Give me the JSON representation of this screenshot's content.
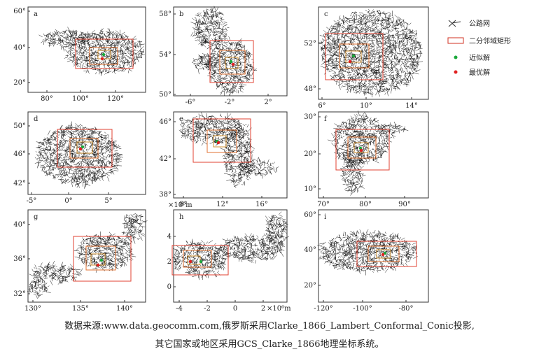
{
  "panels": [
    {
      "label": "a",
      "yticks": [
        "60°",
        "40°",
        "20°"
      ],
      "xticks": [
        "80°",
        "100°",
        "120°"
      ]
    },
    {
      "label": "b",
      "yticks": [
        "58°",
        "54°",
        "50°"
      ],
      "xticks": [
        "-6°",
        "-2°",
        "2°"
      ]
    },
    {
      "label": "c",
      "yticks": [
        "52°",
        "48°"
      ],
      "xticks": [
        "6°",
        "10°",
        "14°"
      ]
    },
    {
      "label": "d",
      "yticks": [
        "50°",
        "46°",
        "42°"
      ],
      "xticks": [
        "-5°",
        "0°",
        "5°"
      ]
    },
    {
      "label": "e",
      "yticks": [
        "46°",
        "42°",
        "38°"
      ],
      "xticks": [
        "8°",
        "12°",
        "16°"
      ]
    },
    {
      "label": "f",
      "yticks": [
        "30°",
        "20°",
        "10°"
      ],
      "xticks": [
        "70°",
        "80°",
        "90°"
      ]
    },
    {
      "label": "g",
      "yticks": [
        "40°",
        "36°",
        "32°"
      ],
      "xticks": [
        "130°",
        "135°",
        "140°"
      ]
    },
    {
      "label": "h",
      "yticks": [
        "4",
        "2",
        "0"
      ],
      "xticks": [
        "-4",
        "-2",
        "0",
        "2"
      ],
      "unit_y": "×10⁶m",
      "unit_x": "×10⁶m"
    },
    {
      "label": "i",
      "yticks": [
        "60°",
        "40°",
        "20°"
      ],
      "xticks": [
        "-120°",
        "-100°",
        "-80°"
      ]
    }
  ],
  "legend": [
    "公路网",
    "二分邻域矩形",
    "近似解",
    "最优解"
  ],
  "caption": [
    "数据来源:www.data.geocomm.com,俄罗斯采用Clarke_1866_Lambert_Conformal_Conic投影,",
    "其它国家或地区采用GCS_Clarke_1866地理坐标系统。"
  ]
}
